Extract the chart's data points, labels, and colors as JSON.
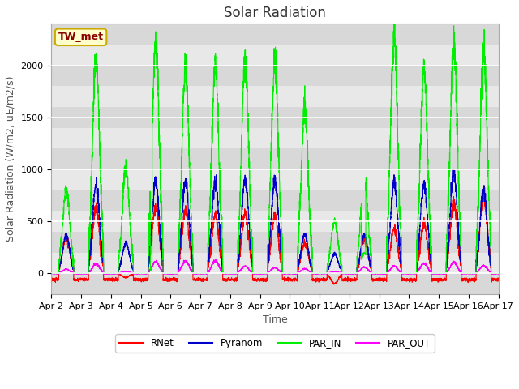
{
  "title": "Solar Radiation",
  "ylabel": "Solar Radiation (W/m2, uE/m2/s)",
  "xlabel": "Time",
  "ylim": [
    -200,
    2400
  ],
  "x_tick_labels": [
    "Apr 2",
    "Apr 3",
    "Apr 4",
    "Apr 5",
    "Apr 6",
    "Apr 7",
    "Apr 8",
    "Apr 9",
    "Apr 10",
    "Apr 11",
    "Apr 12",
    "Apr 13",
    "Apr 14",
    "Apr 15",
    "Apr 16",
    "Apr 17"
  ],
  "legend_labels": [
    "RNet",
    "Pyranom",
    "PAR_IN",
    "PAR_OUT"
  ],
  "legend_colors": [
    "#ff0000",
    "#0000cc",
    "#00ee00",
    "#ff00ff"
  ],
  "station_label": "TW_met",
  "station_label_color": "#8b0000",
  "station_box_facecolor": "#ffffcc",
  "station_box_edgecolor": "#ccaa00",
  "title_fontsize": 12,
  "axis_fontsize": 9,
  "tick_fontsize": 8,
  "num_days": 15,
  "points_per_day": 288,
  "day_peaks_PAR_IN": [
    810,
    2060,
    1010,
    2210,
    1970,
    2010,
    2010,
    2010,
    1590,
    500,
    960,
    2280,
    1950,
    2200,
    2130
  ],
  "day_peaks_Pyranom": [
    370,
    840,
    290,
    890,
    880,
    890,
    900,
    900,
    380,
    190,
    370,
    870,
    860,
    970,
    800
  ],
  "day_peaks_RNet": [
    350,
    630,
    -40,
    640,
    600,
    550,
    580,
    550,
    290,
    -100,
    330,
    430,
    480,
    690,
    750
  ],
  "day_peaks_PAR_OUT": [
    40,
    90,
    15,
    110,
    120,
    120,
    70,
    55,
    45,
    15,
    60,
    70,
    95,
    110,
    75
  ],
  "night_RNet": -60,
  "night_Pyranom": 0,
  "night_PAR_IN": 0,
  "night_PAR_OUT": -3,
  "fig_facecolor": "#ffffff",
  "plot_facecolor": "#e8e8e8",
  "grid_color": "#ffffff",
  "linewidth": 0.8
}
